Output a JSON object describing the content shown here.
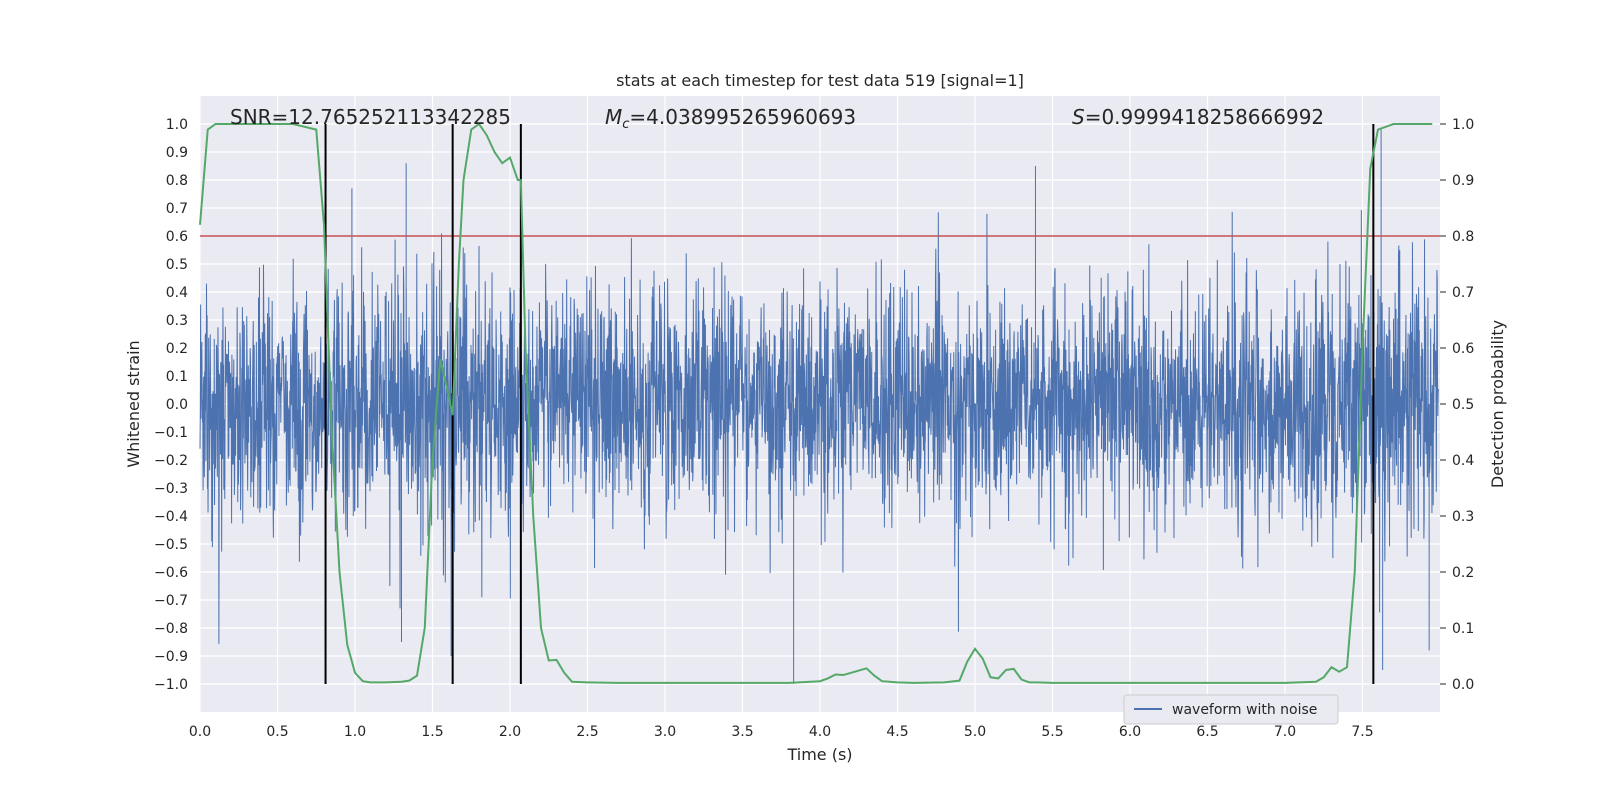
{
  "chart_data": {
    "type": "line",
    "title": "stats at each timestep for test data 519 [signal=1]",
    "xlabel": "Time (s)",
    "ylabel_left": "Whitened strain",
    "ylabel_right": "Detection probability",
    "xlim": [
      0.0,
      8.0
    ],
    "ylim_left": [
      -1.1,
      1.1
    ],
    "ylim_right": [
      -0.05,
      1.05
    ],
    "x_ticks": [
      "0.0",
      "0.5",
      "1.0",
      "1.5",
      "2.0",
      "2.5",
      "3.0",
      "3.5",
      "4.0",
      "4.5",
      "5.0",
      "5.5",
      "6.0",
      "6.5",
      "7.0",
      "7.5"
    ],
    "y_ticks_left": [
      "1.0",
      "0.9",
      "0.8",
      "0.7",
      "0.6",
      "0.5",
      "0.4",
      "0.3",
      "0.2",
      "0.1",
      "0.0",
      "−0.1",
      "−0.2",
      "−0.3",
      "−0.4",
      "−0.5",
      "−0.6",
      "−0.7",
      "−0.8",
      "−0.9",
      "−1.0"
    ],
    "y_ticks_right": [
      "1.0",
      "0.9",
      "0.8",
      "0.7",
      "0.6",
      "0.5",
      "0.4",
      "0.3",
      "0.2",
      "0.1",
      "0.0"
    ],
    "annotations": {
      "snr": "SNR=12.765252113342285",
      "mc_prefix": "M",
      "mc_sub": "c",
      "mc_value": "=4.038995265960693",
      "s_prefix": "S",
      "s_value": "=0.9999418258666992"
    },
    "threshold_right": 0.8,
    "vertical_lines_x": [
      0.81,
      1.63,
      2.07,
      7.57
    ],
    "waveform": {
      "name": "waveform with noise",
      "envelope_time": [
        0.0,
        1.0,
        2.0,
        3.0,
        4.0,
        5.0,
        6.0,
        7.0,
        7.5,
        7.99
      ],
      "envelope_amp": [
        0.33,
        0.36,
        0.35,
        0.32,
        0.32,
        0.32,
        0.32,
        0.33,
        0.4,
        0.38
      ],
      "notable_peaks": [
        {
          "t": 1.33,
          "v": 0.86
        },
        {
          "t": 5.39,
          "v": 0.85
        },
        {
          "t": 7.62,
          "v": 0.98
        },
        {
          "t": 3.83,
          "v": -1.0
        },
        {
          "t": 7.63,
          "v": -0.95
        },
        {
          "t": 7.93,
          "v": -0.88
        },
        {
          "t": 1.3,
          "v": -0.85
        },
        {
          "t": 0.98,
          "v": 0.77
        },
        {
          "t": 1.62,
          "v": -0.9
        }
      ]
    },
    "probability": {
      "t": [
        0.0,
        0.05,
        0.1,
        0.2,
        0.3,
        0.5,
        0.6,
        0.75,
        0.8,
        0.85,
        0.9,
        0.95,
        1.0,
        1.05,
        1.1,
        1.2,
        1.3,
        1.35,
        1.4,
        1.45,
        1.5,
        1.55,
        1.6,
        1.63,
        1.67,
        1.7,
        1.75,
        1.8,
        1.85,
        1.9,
        1.95,
        2.0,
        2.05,
        2.07,
        2.1,
        2.15,
        2.2,
        2.25,
        2.3,
        2.35,
        2.4,
        2.5,
        2.7,
        3.0,
        3.5,
        3.8,
        4.0,
        4.05,
        4.1,
        4.15,
        4.2,
        4.3,
        4.35,
        4.4,
        4.5,
        4.6,
        4.8,
        4.9,
        4.95,
        5.0,
        5.05,
        5.1,
        5.15,
        5.2,
        5.25,
        5.3,
        5.35,
        5.4,
        5.5,
        5.7,
        6.0,
        6.5,
        7.0,
        7.2,
        7.25,
        7.3,
        7.35,
        7.4,
        7.45,
        7.5,
        7.55,
        7.6,
        7.65,
        7.7,
        7.8,
        7.95
      ],
      "p": [
        0.82,
        0.99,
        1.0,
        1.0,
        1.0,
        1.0,
        1.0,
        0.99,
        0.82,
        0.45,
        0.2,
        0.07,
        0.02,
        0.005,
        0.003,
        0.003,
        0.004,
        0.006,
        0.015,
        0.1,
        0.4,
        0.58,
        0.52,
        0.48,
        0.75,
        0.9,
        0.99,
        1.0,
        0.98,
        0.95,
        0.93,
        0.94,
        0.9,
        0.9,
        0.6,
        0.3,
        0.1,
        0.042,
        0.043,
        0.02,
        0.004,
        0.003,
        0.002,
        0.002,
        0.002,
        0.002,
        0.005,
        0.01,
        0.017,
        0.016,
        0.02,
        0.028,
        0.015,
        0.005,
        0.003,
        0.002,
        0.003,
        0.006,
        0.04,
        0.063,
        0.045,
        0.012,
        0.01,
        0.025,
        0.027,
        0.008,
        0.003,
        0.003,
        0.002,
        0.002,
        0.002,
        0.002,
        0.002,
        0.004,
        0.012,
        0.03,
        0.022,
        0.03,
        0.2,
        0.6,
        0.92,
        0.99,
        0.995,
        1.0,
        1.0,
        1.0
      ]
    },
    "colors": {
      "background": "#eaeaf2",
      "grid": "#ffffff",
      "waveform": "#4c72b0",
      "probability": "#55a868",
      "threshold": "#c44e52",
      "vline": "#000000"
    },
    "legend": {
      "position": "lower-right",
      "entries": [
        "waveform with noise"
      ]
    }
  }
}
